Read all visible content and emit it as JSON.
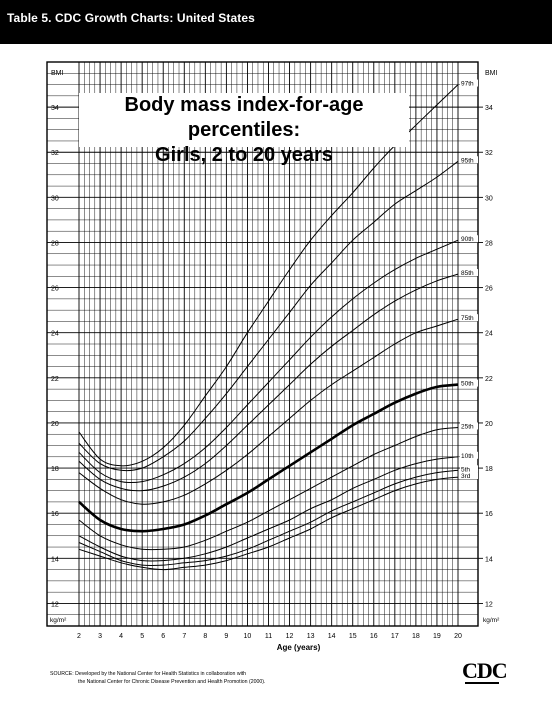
{
  "header": {
    "title": "Table 5. CDC Growth Charts: United States"
  },
  "chart_data": {
    "type": "line",
    "title": "Body mass index-for-age percentiles:",
    "subtitle": "Girls, 2 to 20 years",
    "xlabel": "Age (years)",
    "ylabel": "BMI",
    "yunit": "kg/m²",
    "xlim": [
      2,
      20
    ],
    "ylim": [
      11,
      36
    ],
    "x_ticks": [
      2,
      3,
      4,
      5,
      6,
      7,
      8,
      9,
      10,
      11,
      12,
      13,
      14,
      15,
      16,
      17,
      18,
      19,
      20
    ],
    "y_ticks": [
      12,
      14,
      16,
      18,
      20,
      22,
      24,
      26,
      28,
      30,
      32,
      34
    ],
    "grid": true,
    "x": [
      2,
      3,
      4,
      5,
      6,
      7,
      8,
      9,
      10,
      11,
      12,
      13,
      14,
      15,
      16,
      17,
      18,
      19,
      20
    ],
    "series": [
      {
        "name": "97th",
        "values": [
          19.6,
          18.4,
          18.1,
          18.3,
          18.9,
          19.9,
          21.2,
          22.5,
          24.0,
          25.4,
          26.8,
          28.1,
          29.2,
          30.2,
          31.3,
          32.3,
          33.2,
          34.1,
          35.0
        ],
        "bold": false
      },
      {
        "name": "95th",
        "values": [
          19.1,
          18.2,
          17.9,
          18.0,
          18.5,
          19.2,
          20.2,
          21.3,
          22.5,
          23.7,
          24.9,
          26.1,
          27.1,
          28.1,
          28.9,
          29.7,
          30.3,
          30.9,
          31.6
        ],
        "bold": false
      },
      {
        "name": "90th",
        "values": [
          18.7,
          17.8,
          17.4,
          17.4,
          17.7,
          18.2,
          18.9,
          19.8,
          20.8,
          21.8,
          22.8,
          23.8,
          24.7,
          25.5,
          26.2,
          26.8,
          27.3,
          27.7,
          28.1
        ],
        "bold": false
      },
      {
        "name": "85th",
        "values": [
          18.3,
          17.5,
          17.1,
          17.0,
          17.2,
          17.6,
          18.2,
          19.0,
          19.9,
          20.8,
          21.7,
          22.6,
          23.4,
          24.1,
          24.8,
          25.4,
          25.9,
          26.3,
          26.6
        ],
        "bold": false
      },
      {
        "name": "75th",
        "values": [
          17.8,
          17.1,
          16.6,
          16.4,
          16.5,
          16.8,
          17.3,
          17.9,
          18.6,
          19.4,
          20.2,
          21.0,
          21.7,
          22.3,
          22.9,
          23.5,
          24.0,
          24.3,
          24.6
        ],
        "bold": false
      },
      {
        "name": "50th",
        "values": [
          16.5,
          15.7,
          15.3,
          15.2,
          15.3,
          15.5,
          15.9,
          16.4,
          16.9,
          17.5,
          18.1,
          18.7,
          19.3,
          19.9,
          20.4,
          20.9,
          21.3,
          21.6,
          21.7
        ],
        "bold": true
      },
      {
        "name": "25th",
        "values": [
          15.7,
          15.0,
          14.6,
          14.4,
          14.4,
          14.5,
          14.8,
          15.2,
          15.6,
          16.1,
          16.6,
          17.1,
          17.6,
          18.1,
          18.6,
          19.0,
          19.4,
          19.7,
          19.8
        ],
        "bold": false
      },
      {
        "name": "10th",
        "values": [
          15.0,
          14.5,
          14.1,
          13.9,
          13.9,
          14.0,
          14.2,
          14.5,
          14.9,
          15.3,
          15.7,
          16.2,
          16.6,
          17.1,
          17.5,
          17.9,
          18.2,
          18.4,
          18.5
        ],
        "bold": false
      },
      {
        "name": "5th",
        "values": [
          14.7,
          14.3,
          13.9,
          13.7,
          13.7,
          13.8,
          13.9,
          14.1,
          14.4,
          14.8,
          15.2,
          15.6,
          16.1,
          16.5,
          16.9,
          17.3,
          17.6,
          17.8,
          17.9
        ],
        "bold": false
      },
      {
        "name": "3rd",
        "values": [
          14.4,
          14.1,
          13.8,
          13.6,
          13.5,
          13.6,
          13.7,
          13.9,
          14.2,
          14.5,
          14.9,
          15.3,
          15.8,
          16.2,
          16.6,
          17.0,
          17.3,
          17.5,
          17.6
        ],
        "bold": false
      }
    ]
  },
  "footer": {
    "source_line1": "SOURCE: Developed by the National Center for Health Statistics in collaboration with",
    "source_line2": "the National Center for Chronic Disease Prevention and Health Promotion (2000).",
    "logo_text": "CDC"
  }
}
